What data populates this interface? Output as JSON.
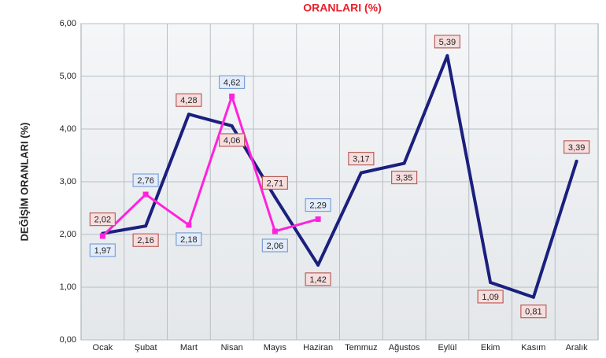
{
  "chart_data": {
    "type": "line",
    "title": "ORANLARI (%)",
    "y_label": "DEĞİŞİM ORANLARI (%)",
    "categories": [
      "Ocak",
      "Şubat",
      "Mart",
      "Nisan",
      "Mayıs",
      "Haziran",
      "Temmuz",
      "Ağustos",
      "Eylül",
      "Ekim",
      "Kasım",
      "Aralık"
    ],
    "series": [
      {
        "color": "#1b1f7d",
        "values": [
          2.02,
          2.16,
          4.28,
          4.06,
          2.71,
          1.42,
          3.17,
          3.35,
          5.39,
          1.09,
          0.81,
          3.39
        ],
        "value_labels": [
          "2,02",
          "2,16",
          "4,28",
          "4,06",
          "2,71",
          "1,42",
          "3,17",
          "3,35",
          "5,39",
          "1,09",
          "0,81",
          "3,39"
        ]
      },
      {
        "color": "#ff22dd",
        "values": [
          1.97,
          2.76,
          2.18,
          4.62,
          2.06,
          2.29,
          null,
          null,
          null,
          null,
          null,
          null
        ],
        "value_labels": [
          "1,97",
          "2,76",
          "2,18",
          "4,62",
          "2,06",
          "2,29",
          null,
          null,
          null,
          null,
          null,
          null
        ]
      }
    ],
    "ylim": [
      0,
      6
    ],
    "yticks": [
      {
        "value": 0,
        "label": "0,00"
      },
      {
        "value": 1,
        "label": "1,00"
      },
      {
        "value": 2,
        "label": "2,00"
      },
      {
        "value": 3,
        "label": "3,00"
      },
      {
        "value": 4,
        "label": "4,00"
      },
      {
        "value": 5,
        "label": "5,00"
      },
      {
        "value": 6,
        "label": "6,00"
      }
    ],
    "grid": true
  }
}
